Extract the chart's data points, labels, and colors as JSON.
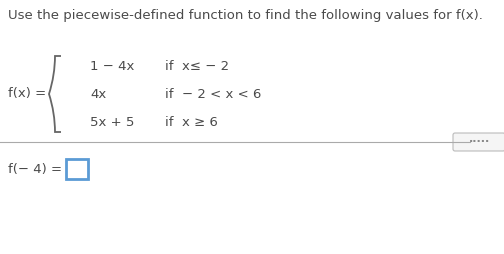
{
  "title": "Use the piecewise-defined function to find the following values for f(x).",
  "title_color": "#4a4a4a",
  "title_fontsize": 9.5,
  "bg_color": "#ffffff",
  "pieces": [
    {
      "expr": "1 − 4x",
      "cond": "if  x≤ − 2"
    },
    {
      "expr": "4x",
      "cond": "if  − 2 < x < 6"
    },
    {
      "expr": "5x + 5",
      "cond": "if  x ≥ 6"
    }
  ],
  "question": "f(− 4) =",
  "question_color": "#4a4a4a",
  "question_fontsize": 9.5,
  "answer_box_color": "#5b9bd5",
  "divider_color": "#aaaaaa",
  "dots_color": "#999999",
  "expr_fontsize": 9.5,
  "cond_fontsize": 9.5,
  "fx_fontsize": 9.5,
  "text_color": "#4a4a4a"
}
